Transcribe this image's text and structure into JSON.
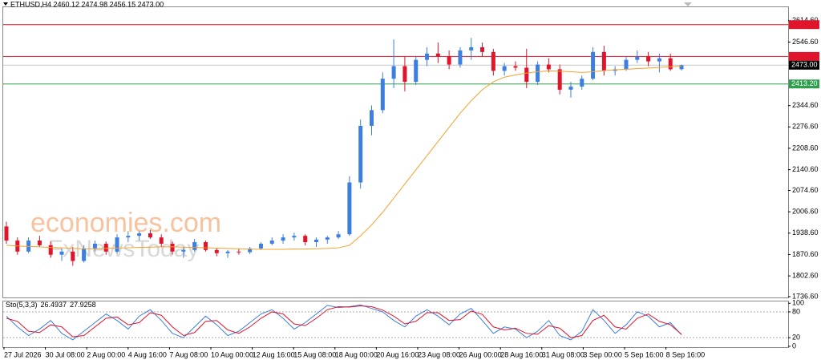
{
  "chart_data": {
    "type": "candlestick",
    "title": "ETHUSD,H4  2460.12 2474.98 2456.15 2473.00",
    "watermarks": [
      "economies.com",
      "FxNewsToday"
    ],
    "up_color": "#3d7fe0",
    "down_color": "#e0142b",
    "open": [
      1960,
      1915,
      1880,
      1915,
      1900,
      1870,
      1880,
      1850,
      1890,
      1905,
      1880,
      1925,
      1930,
      1938,
      1925,
      1905,
      1880,
      1885,
      1910,
      1885,
      1875,
      1880,
      1878,
      1890,
      1905,
      1915,
      1925,
      1930,
      1910,
      1918,
      1925,
      1935,
      2100,
      2280,
      2330,
      2430,
      2470,
      2420,
      2490,
      2510,
      2500,
      2475,
      2520,
      2530,
      2515,
      2455,
      2470,
      2465,
      2420,
      2475,
      2460,
      2395,
      2405,
      2430,
      2515,
      2455,
      2460,
      2490,
      2500,
      2485,
      2495,
      2460.12
    ],
    "high": [
      1975,
      1925,
      1925,
      1930,
      1912,
      1890,
      1895,
      1900,
      1915,
      1912,
      1935,
      1945,
      1945,
      1948,
      1935,
      1912,
      1895,
      1920,
      1915,
      1890,
      1885,
      1890,
      1895,
      1910,
      1925,
      1935,
      1940,
      1935,
      1925,
      1930,
      1945,
      2120,
      2300,
      2345,
      2450,
      2555,
      2500,
      2500,
      2530,
      2545,
      2520,
      2530,
      2560,
      2545,
      2525,
      2480,
      2485,
      2525,
      2485,
      2495,
      2475,
      2420,
      2440,
      2530,
      2535,
      2470,
      2500,
      2520,
      2515,
      2510,
      2510,
      2474.98
    ],
    "low": [
      1905,
      1870,
      1875,
      1895,
      1860,
      1850,
      1835,
      1845,
      1880,
      1870,
      1875,
      1910,
      1915,
      1920,
      1895,
      1870,
      1860,
      1880,
      1880,
      1865,
      1860,
      1870,
      1872,
      1885,
      1900,
      1905,
      1915,
      1900,
      1895,
      1905,
      1920,
      1930,
      2080,
      2250,
      2320,
      2400,
      2390,
      2410,
      2470,
      2480,
      2460,
      2465,
      2490,
      2500,
      2440,
      2440,
      2455,
      2400,
      2410,
      2450,
      2380,
      2370,
      2395,
      2425,
      2440,
      2440,
      2455,
      2480,
      2470,
      2450,
      2455,
      2456.15
    ],
    "close": [
      1915,
      1880,
      1915,
      1900,
      1870,
      1880,
      1850,
      1890,
      1905,
      1880,
      1925,
      1930,
      1938,
      1925,
      1905,
      1880,
      1885,
      1910,
      1885,
      1875,
      1880,
      1878,
      1890,
      1905,
      1915,
      1925,
      1930,
      1910,
      1918,
      1925,
      1935,
      2100,
      2280,
      2330,
      2430,
      2470,
      2420,
      2490,
      2510,
      2500,
      2475,
      2520,
      2530,
      2515,
      2455,
      2470,
      2465,
      2420,
      2475,
      2460,
      2395,
      2405,
      2430,
      2515,
      2455,
      2460,
      2490,
      2500,
      2485,
      2495,
      2460,
      2473
    ],
    "ma": {
      "color": "#f5a02a",
      "values": [
        1900,
        1898,
        1896,
        1895,
        1893,
        1892,
        1890,
        1889,
        1889,
        1890,
        1891,
        1892,
        1893,
        1894,
        1895,
        1895,
        1894,
        1893,
        1892,
        1891,
        1890,
        1889,
        1888,
        1887,
        1887,
        1887,
        1888,
        1888,
        1889,
        1890,
        1892,
        1900,
        1930,
        1965,
        2005,
        2050,
        2095,
        2140,
        2185,
        2230,
        2275,
        2320,
        2360,
        2395,
        2420,
        2435,
        2442,
        2448,
        2452,
        2455,
        2454,
        2452,
        2450,
        2452,
        2456,
        2458,
        2460,
        2462,
        2464,
        2466,
        2468,
        2470
      ]
    },
    "levels": [
      {
        "value": 2602.05,
        "color": "#e0142b"
      },
      {
        "value": 2500.81,
        "color": "#e0142b"
      },
      {
        "value": 2413.2,
        "label": "2413.20",
        "color": "#2e9e4e"
      }
    ],
    "last_price": {
      "value": 2473,
      "label": "2473.00",
      "color": "#000000"
    },
    "ylim": [
      1734,
      2660
    ],
    "yticks": [
      {
        "value": 2614.6,
        "label": "2614.60"
      },
      {
        "value": 2546.6,
        "label": "2546.60"
      },
      {
        "value": 2344.6,
        "label": "2344.60"
      },
      {
        "value": 2276.6,
        "label": "2276.60"
      },
      {
        "value": 2208.6,
        "label": "2208.60"
      },
      {
        "value": 2140.6,
        "label": "2140.60"
      },
      {
        "value": 2074.6,
        "label": "2074.60"
      },
      {
        "value": 2006.6,
        "label": "2006.60"
      },
      {
        "value": 1938.6,
        "label": "1938.60"
      },
      {
        "value": 1870.6,
        "label": "1870.60"
      },
      {
        "value": 1802.6,
        "label": "1802.60"
      },
      {
        "value": 1736.6,
        "label": "1736.60"
      }
    ],
    "xticks": [
      "27 Jul 2026",
      "30 Jul 08:00",
      "2 Aug 00:00",
      "4 Aug 16:00",
      "7 Aug 08:00",
      "10 Aug 00:00",
      "12 Aug 16:00",
      "15 Aug 08:00",
      "18 Aug 00:00",
      "20 Aug 16:00",
      "23 Aug 08:00",
      "26 Aug 00:00",
      "28 Aug 16:00",
      "31 Aug 08:00",
      "3 Sep 00:00",
      "5 Sep 16:00",
      "8 Sep 16:00"
    ],
    "stochastic": {
      "label": "Sto(5,3,3)",
      "ylim": [
        -2,
        106
      ],
      "yticks": [
        100,
        80,
        20,
        0
      ],
      "levels": [
        80,
        20
      ],
      "series": [
        {
          "color": "#3d7fe0",
          "values": [
            70,
            45,
            25,
            40,
            60,
            30,
            15,
            35,
            55,
            75,
            60,
            40,
            70,
            85,
            60,
            30,
            20,
            45,
            70,
            50,
            25,
            35,
            55,
            75,
            85,
            65,
            40,
            55,
            75,
            95,
            90,
            92,
            96,
            88,
            80,
            60,
            45,
            70,
            85,
            70,
            50,
            75,
            88,
            60,
            30,
            45,
            40,
            20,
            35,
            60,
            25,
            15,
            35,
            85,
            60,
            30,
            50,
            80,
            70,
            45,
            55,
            26.4937
          ]
        },
        {
          "color": "#e0142b",
          "values": [
            65,
            58,
            35,
            32,
            50,
            45,
            22,
            25,
            45,
            65,
            68,
            50,
            55,
            78,
            72,
            45,
            25,
            32,
            58,
            60,
            38,
            30,
            45,
            65,
            80,
            75,
            52,
            48,
            65,
            85,
            92,
            91,
            94,
            92,
            84,
            70,
            52,
            58,
            78,
            78,
            60,
            62,
            82,
            74,
            45,
            38,
            42,
            30,
            28,
            48,
            42,
            20,
            25,
            60,
            72,
            45,
            40,
            65,
            75,
            58,
            50,
            27.9258
          ]
        }
      ]
    }
  }
}
